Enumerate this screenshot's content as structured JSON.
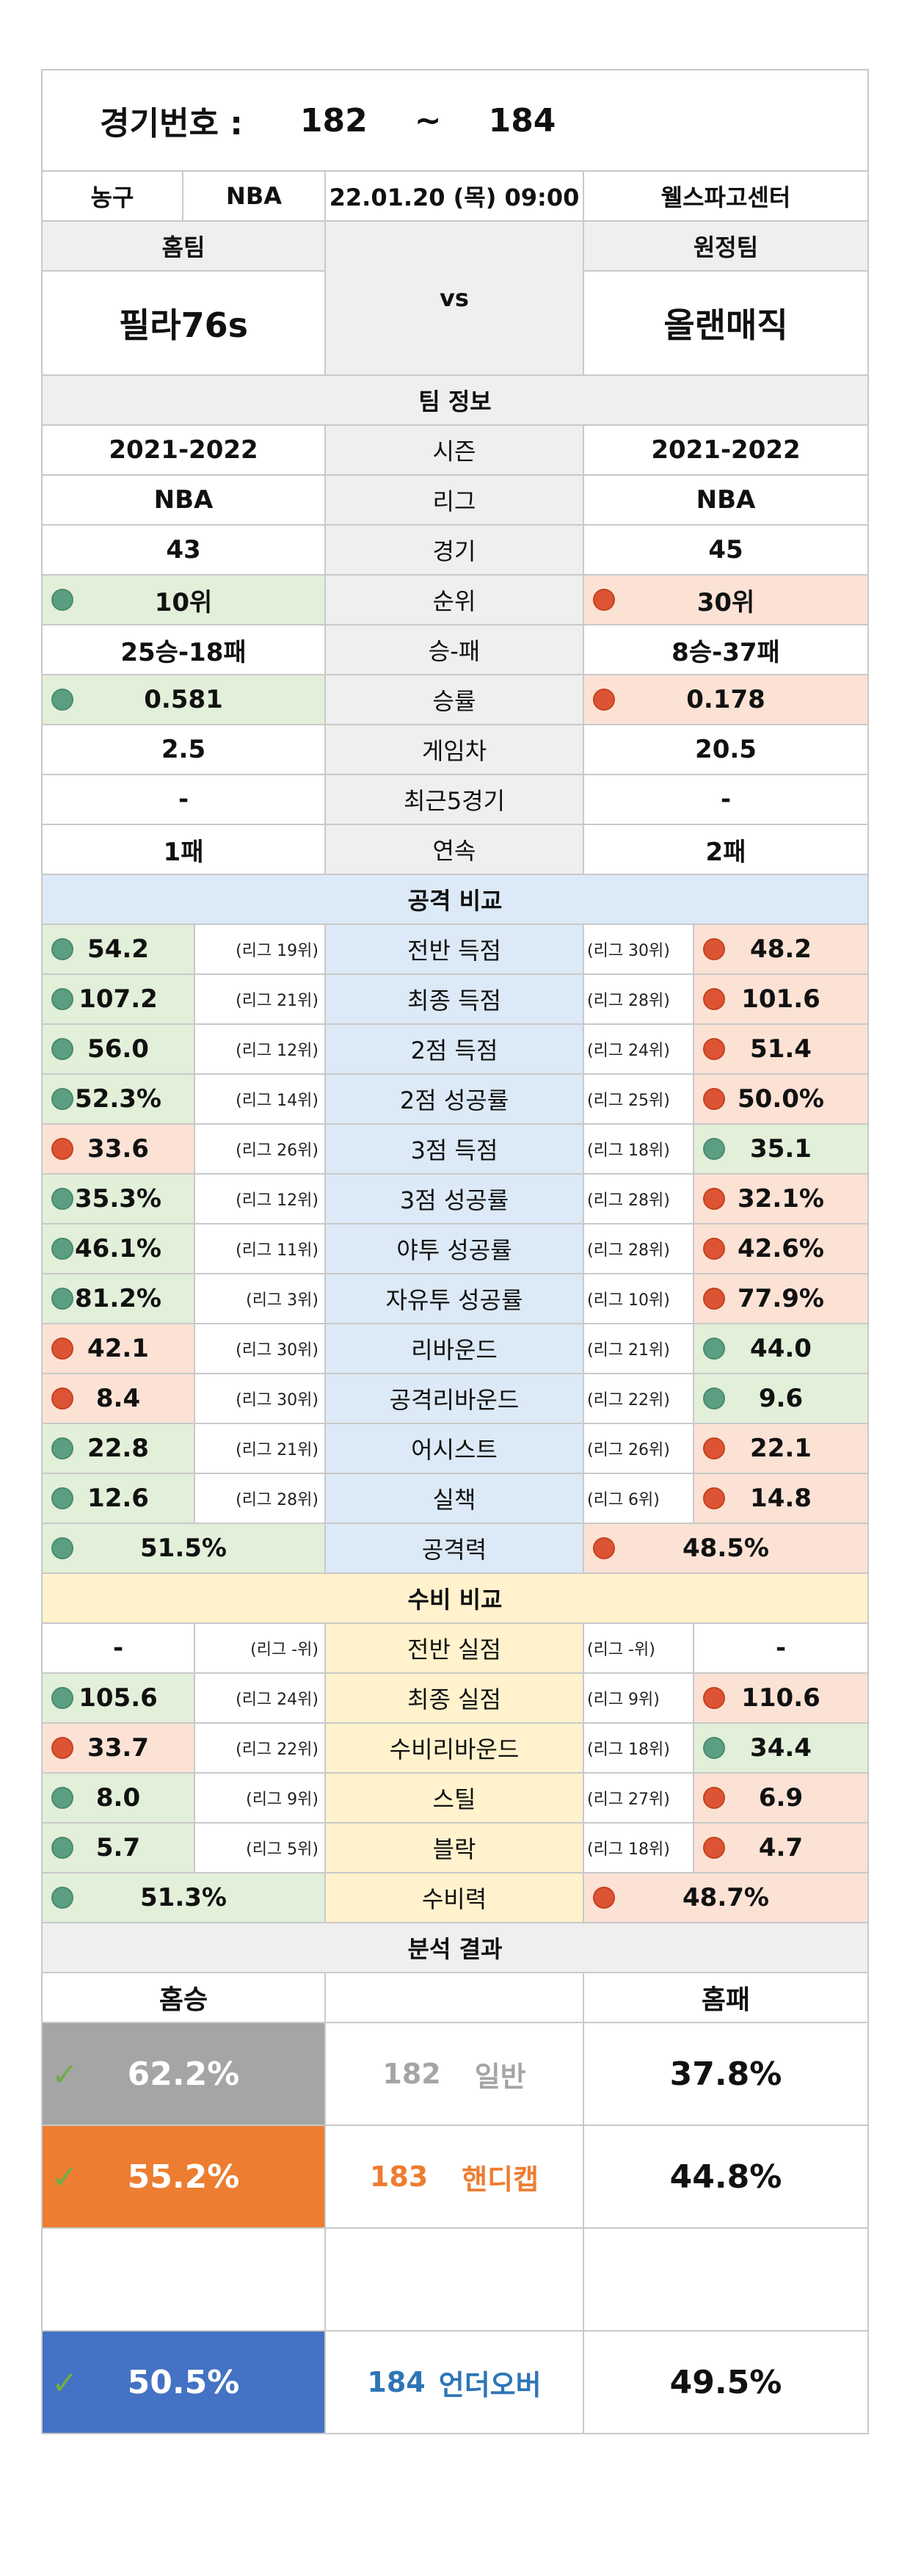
{
  "header": {
    "label": "경기번호 :",
    "start": "182",
    "tilde": "~",
    "end": "184"
  },
  "info": {
    "sport": "농구",
    "league": "NBA",
    "datetime": "22.01.20 (목) 09:00",
    "venue": "웰스파고센터"
  },
  "teams": {
    "home_label": "홈팀",
    "away_label": "원정팀",
    "vs": "vs",
    "home": "필라76s",
    "away": "올랜매직"
  },
  "team_info": {
    "title": "팀 정보",
    "rows": [
      {
        "label": "시즌",
        "home": "2021-2022",
        "away": "2021-2022",
        "home_mark": "",
        "away_mark": ""
      },
      {
        "label": "리그",
        "home": "NBA",
        "away": "NBA",
        "home_mark": "",
        "away_mark": ""
      },
      {
        "label": "경기",
        "home": "43",
        "away": "45",
        "home_mark": "",
        "away_mark": ""
      },
      {
        "label": "순위",
        "home": "10위",
        "away": "30위",
        "home_mark": "g",
        "away_mark": "r"
      },
      {
        "label": "승-패",
        "home": "25승-18패",
        "away": "8승-37패",
        "home_mark": "",
        "away_mark": ""
      },
      {
        "label": "승률",
        "home": "0.581",
        "away": "0.178",
        "home_mark": "g",
        "away_mark": "r"
      },
      {
        "label": "게임차",
        "home": "2.5",
        "away": "20.5",
        "home_mark": "",
        "away_mark": ""
      },
      {
        "label": "최근5경기",
        "home": "-",
        "away": "-",
        "home_mark": "",
        "away_mark": ""
      },
      {
        "label": "연속",
        "home": "1패",
        "away": "2패",
        "home_mark": "",
        "away_mark": ""
      }
    ]
  },
  "attack": {
    "title": "공격 비교",
    "rows": [
      {
        "label": "전반 득점",
        "home": "54.2",
        "home_rank": "(리그 19위)",
        "away": "48.2",
        "away_rank": "(리그 30위)",
        "home_mark": "g",
        "away_mark": "r"
      },
      {
        "label": "최종 득점",
        "home": "107.2",
        "home_rank": "(리그 21위)",
        "away": "101.6",
        "away_rank": "(리그 28위)",
        "home_mark": "g",
        "away_mark": "r"
      },
      {
        "label": "2점 득점",
        "home": "56.0",
        "home_rank": "(리그 12위)",
        "away": "51.4",
        "away_rank": "(리그 24위)",
        "home_mark": "g",
        "away_mark": "r"
      },
      {
        "label": "2점 성공률",
        "home": "52.3%",
        "home_rank": "(리그 14위)",
        "away": "50.0%",
        "away_rank": "(리그 25위)",
        "home_mark": "g",
        "away_mark": "r"
      },
      {
        "label": "3점 득점",
        "home": "33.6",
        "home_rank": "(리그 26위)",
        "away": "35.1",
        "away_rank": "(리그 18위)",
        "home_mark": "r",
        "away_mark": "g"
      },
      {
        "label": "3점 성공률",
        "home": "35.3%",
        "home_rank": "(리그 12위)",
        "away": "32.1%",
        "away_rank": "(리그 28위)",
        "home_mark": "g",
        "away_mark": "r"
      },
      {
        "label": "야투 성공률",
        "home": "46.1%",
        "home_rank": "(리그 11위)",
        "away": "42.6%",
        "away_rank": "(리그 28위)",
        "home_mark": "g",
        "away_mark": "r"
      },
      {
        "label": "자유투 성공률",
        "home": "81.2%",
        "home_rank": "(리그 3위)",
        "away": "77.9%",
        "away_rank": "(리그 10위)",
        "home_mark": "g",
        "away_mark": "r"
      },
      {
        "label": "리바운드",
        "home": "42.1",
        "home_rank": "(리그 30위)",
        "away": "44.0",
        "away_rank": "(리그 21위)",
        "home_mark": "r",
        "away_mark": "g"
      },
      {
        "label": "공격리바운드",
        "home": "8.4",
        "home_rank": "(리그 30위)",
        "away": "9.6",
        "away_rank": "(리그 22위)",
        "home_mark": "r",
        "away_mark": "g"
      },
      {
        "label": "어시스트",
        "home": "22.8",
        "home_rank": "(리그 21위)",
        "away": "22.1",
        "away_rank": "(리그 26위)",
        "home_mark": "g",
        "away_mark": "r"
      },
      {
        "label": "실책",
        "home": "12.6",
        "home_rank": "(리그 28위)",
        "away": "14.8",
        "away_rank": "(리그 6위)",
        "home_mark": "g",
        "away_mark": "r"
      }
    ],
    "power": {
      "label": "공격력",
      "home": "51.5%",
      "away": "48.5%",
      "home_mark": "g",
      "away_mark": "r"
    }
  },
  "defense": {
    "title": "수비 비교",
    "rows": [
      {
        "label": "전반 실점",
        "home": "-",
        "home_rank": "(리그 -위)",
        "away": "-",
        "away_rank": "(리그 -위)",
        "home_mark": "",
        "away_mark": ""
      },
      {
        "label": "최종 실점",
        "home": "105.6",
        "home_rank": "(리그 24위)",
        "away": "110.6",
        "away_rank": "(리그 9위)",
        "home_mark": "g",
        "away_mark": "r"
      },
      {
        "label": "수비리바운드",
        "home": "33.7",
        "home_rank": "(리그 22위)",
        "away": "34.4",
        "away_rank": "(리그 18위)",
        "home_mark": "r",
        "away_mark": "g"
      },
      {
        "label": "스틸",
        "home": "8.0",
        "home_rank": "(리그 9위)",
        "away": "6.9",
        "away_rank": "(리그 27위)",
        "home_mark": "g",
        "away_mark": "r"
      },
      {
        "label": "블락",
        "home": "5.7",
        "home_rank": "(리그 5위)",
        "away": "4.7",
        "away_rank": "(리그 18위)",
        "home_mark": "g",
        "away_mark": "r"
      }
    ],
    "power": {
      "label": "수비력",
      "home": "51.3%",
      "away": "48.7%",
      "home_mark": "g",
      "away_mark": "r"
    }
  },
  "result": {
    "title": "분석 결과",
    "home_win_label": "홈승",
    "home_lose_label": "홈패",
    "rows": [
      {
        "num": "182",
        "type": "일반",
        "win": "62.2%",
        "lose": "37.8%",
        "color": "#a5a5a5",
        "text_color": "#a5a5a5"
      },
      {
        "num": "183",
        "type": "핸디캡",
        "win": "55.2%",
        "lose": "44.8%",
        "color": "#ed7d31",
        "text_color": "#ed7d31"
      },
      {
        "num": "184",
        "type": "언더오버",
        "win": "50.5%",
        "lose": "49.5%",
        "color": "#4472c4",
        "text_color": "#2e75b6"
      }
    ]
  }
}
